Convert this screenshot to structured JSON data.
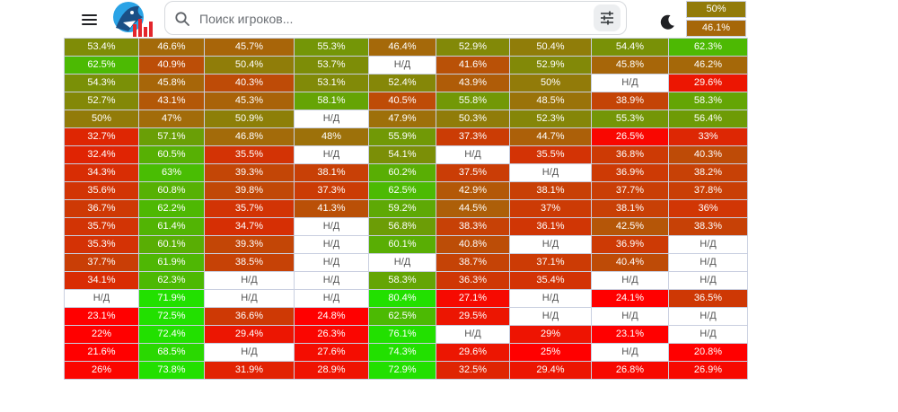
{
  "search": {
    "placeholder": "Поиск игроков..."
  },
  "icons": {
    "menu": "menu-icon",
    "search": "search-icon",
    "filter": "tune-icon",
    "theme": "moon-icon",
    "logo": "shark-logo-icon"
  },
  "colors": {
    "low": "#ff0000",
    "high": "#22e000",
    "na_text": "#555555",
    "border": "#c9cfe0"
  },
  "corner_cells": [
    "50%",
    "46.1%"
  ],
  "table": {
    "rows": [
      [
        "53.4%",
        "46.6%",
        "45.7%",
        "55.3%",
        "46.4%",
        "52.9%",
        "50.4%",
        "54.4%",
        "62.3%"
      ],
      [
        "62.5%",
        "40.9%",
        "50.4%",
        "53.7%",
        "Н/Д",
        "41.6%",
        "52.9%",
        "45.8%",
        "46.2%"
      ],
      [
        "54.3%",
        "45.8%",
        "40.3%",
        "53.1%",
        "52.4%",
        "43.9%",
        "50%",
        "Н/Д",
        "29.6%"
      ],
      [
        "52.7%",
        "43.1%",
        "45.3%",
        "58.1%",
        "40.5%",
        "55.8%",
        "48.5%",
        "38.9%",
        "58.3%"
      ],
      [
        "50%",
        "47%",
        "50.9%",
        "Н/Д",
        "47.9%",
        "50.3%",
        "52.3%",
        "55.3%",
        "56.4%"
      ],
      [
        "32.7%",
        "57.1%",
        "46.8%",
        "48%",
        "55.9%",
        "37.3%",
        "44.7%",
        "26.5%",
        "33%"
      ],
      [
        "32.4%",
        "60.5%",
        "35.5%",
        "Н/Д",
        "54.1%",
        "Н/Д",
        "35.5%",
        "36.8%",
        "40.3%"
      ],
      [
        "34.3%",
        "63%",
        "39.3%",
        "38.1%",
        "60.2%",
        "37.5%",
        "Н/Д",
        "36.9%",
        "38.2%"
      ],
      [
        "35.6%",
        "60.8%",
        "39.8%",
        "37.3%",
        "62.5%",
        "42.9%",
        "38.1%",
        "37.7%",
        "37.8%"
      ],
      [
        "36.7%",
        "62.2%",
        "35.7%",
        "41.3%",
        "59.2%",
        "44.5%",
        "37%",
        "38.1%",
        "36%"
      ],
      [
        "35.7%",
        "61.4%",
        "34.7%",
        "Н/Д",
        "56.8%",
        "38.3%",
        "36.1%",
        "42.5%",
        "38.3%"
      ],
      [
        "35.3%",
        "60.1%",
        "39.3%",
        "Н/Д",
        "60.1%",
        "40.8%",
        "Н/Д",
        "36.9%",
        "Н/Д"
      ],
      [
        "37.7%",
        "61.9%",
        "38.5%",
        "Н/Д",
        "Н/Д",
        "38.7%",
        "37.1%",
        "40.4%",
        "Н/Д"
      ],
      [
        "34.1%",
        "62.3%",
        "Н/Д",
        "Н/Д",
        "58.3%",
        "36.3%",
        "35.4%",
        "Н/Д",
        "Н/Д"
      ],
      [
        "Н/Д",
        "71.9%",
        "Н/Д",
        "Н/Д",
        "80.4%",
        "27.1%",
        "Н/Д",
        "24.1%",
        "36.5%"
      ],
      [
        "23.1%",
        "72.5%",
        "36.6%",
        "24.8%",
        "62.5%",
        "29.5%",
        "Н/Д",
        "Н/Д",
        "Н/Д"
      ],
      [
        "22%",
        "72.4%",
        "29.4%",
        "26.3%",
        "76.1%",
        "Н/Д",
        "29%",
        "23.1%",
        "Н/Д"
      ],
      [
        "21.6%",
        "68.5%",
        "Н/Д",
        "27.6%",
        "74.3%",
        "29.6%",
        "25%",
        "Н/Д",
        "20.8%"
      ],
      [
        "26%",
        "73.8%",
        "31.9%",
        "28.9%",
        "72.9%",
        "32.5%",
        "29.4%",
        "26.8%",
        "26.9%"
      ]
    ]
  }
}
